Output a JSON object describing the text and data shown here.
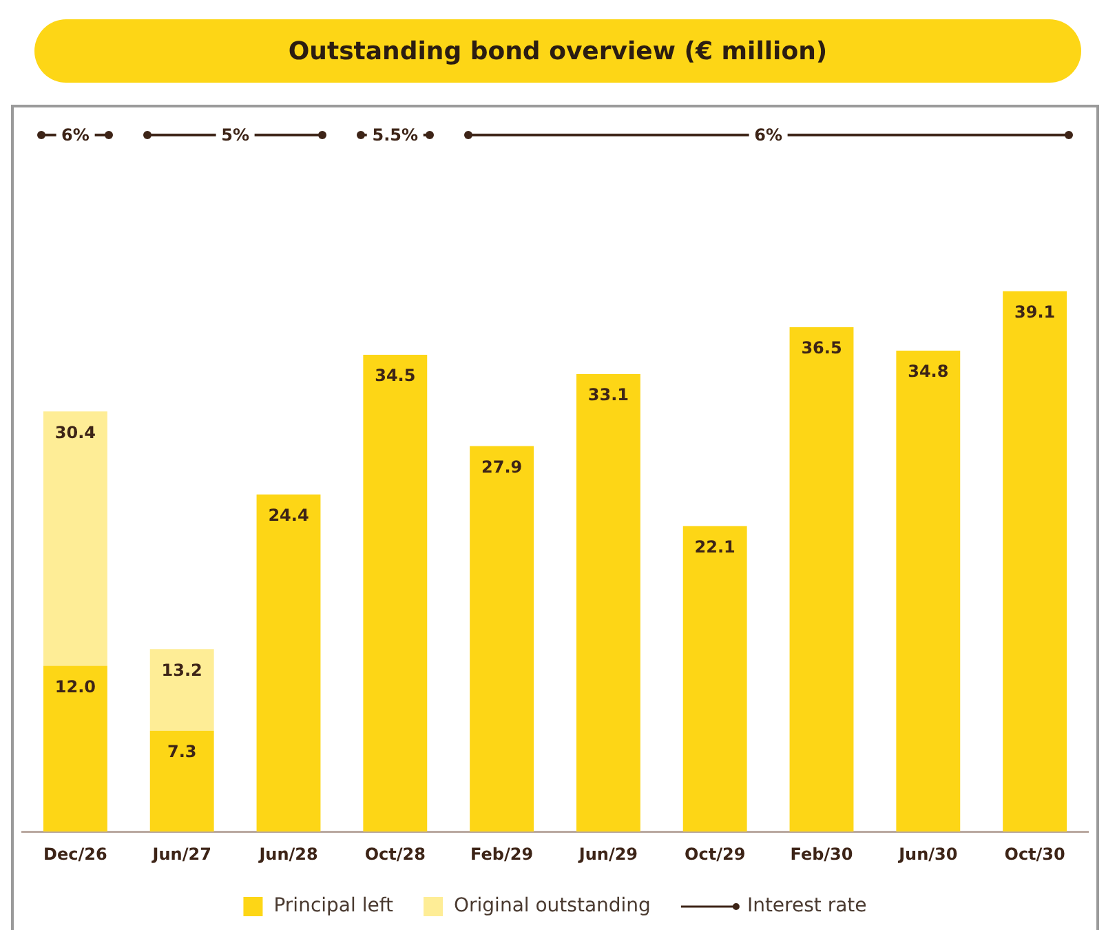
{
  "chart_data": {
    "type": "bar",
    "title": "Outstanding bond overview (€ million)",
    "categories": [
      "Dec/26",
      "Jun/27",
      "Jun/28",
      "Oct/28",
      "Feb/29",
      "Jun/29",
      "Oct/29",
      "Feb/30",
      "Jun/30",
      "Oct/30"
    ],
    "stacked": true,
    "series": [
      {
        "name": "Principal left",
        "color": "#fdd616",
        "values": [
          12.0,
          7.3,
          24.4,
          34.5,
          27.9,
          33.1,
          22.1,
          36.5,
          34.8,
          39.1
        ],
        "value_labels": [
          "12.0",
          "7.3",
          "24.4",
          "34.5",
          "27.9",
          "33.1",
          "22.1",
          "36.5",
          "34.8",
          "39.1"
        ]
      },
      {
        "name": "Original outstanding",
        "color": "#feed96",
        "values": [
          18.4,
          5.9,
          null,
          null,
          null,
          null,
          null,
          null,
          null,
          null
        ]
      }
    ],
    "totals": [
      "30.4",
      "13.2",
      null,
      null,
      null,
      null,
      null,
      null,
      null,
      null
    ],
    "annotations": [
      "6%",
      "5%",
      "5.5%",
      "6%",
      "Interest rate"
    ],
    "legend": "bottom",
    "grid": false
  }
}
